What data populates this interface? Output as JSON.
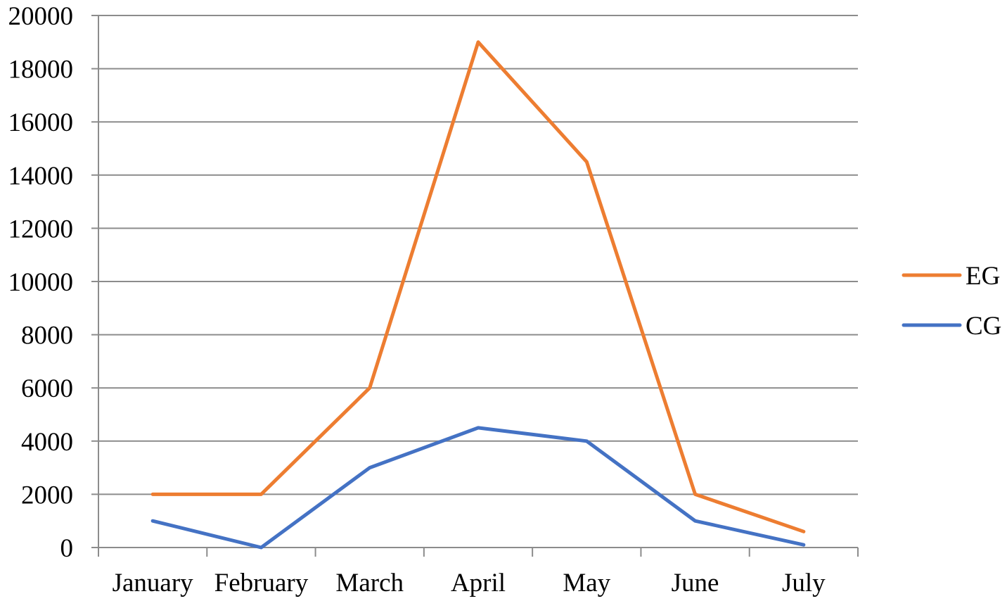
{
  "chart_data": {
    "type": "line",
    "categories": [
      "January",
      "February",
      "March",
      "April",
      "May",
      "June",
      "July"
    ],
    "series": [
      {
        "name": "EG",
        "values": [
          2000,
          2000,
          6000,
          19000,
          14500,
          2000,
          600
        ],
        "color": "#ED7D31"
      },
      {
        "name": "CG",
        "values": [
          1000,
          0,
          3000,
          4500,
          4000,
          1000,
          100
        ],
        "color": "#4472C4"
      }
    ],
    "ylim": [
      0,
      20000
    ],
    "yticks": [
      0,
      2000,
      4000,
      6000,
      8000,
      10000,
      12000,
      14000,
      16000,
      18000,
      20000
    ],
    "grid": true,
    "legend_position": "right",
    "title": "",
    "xlabel": "",
    "ylabel": ""
  }
}
